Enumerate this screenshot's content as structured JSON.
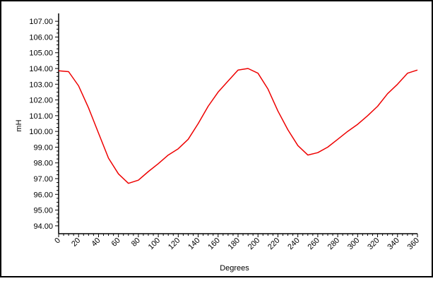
{
  "chart_data": {
    "type": "line",
    "xlabel": "Degrees",
    "ylabel": "mH",
    "xlim": [
      0,
      360
    ],
    "ylim": [
      93.5,
      107.5
    ],
    "x_ticks": [
      0,
      20,
      40,
      60,
      80,
      100,
      120,
      140,
      160,
      180,
      200,
      220,
      240,
      260,
      280,
      300,
      320,
      340,
      360
    ],
    "y_ticks": [
      94,
      95,
      96,
      97,
      98,
      99,
      100,
      101,
      102,
      103,
      104,
      105,
      106,
      107
    ],
    "x_tick_labels": [
      "0",
      "20",
      "40",
      "60",
      "80",
      "100",
      "120",
      "140",
      "160",
      "180",
      "200",
      "220",
      "240",
      "260",
      "280",
      "300",
      "320",
      "340",
      "360"
    ],
    "y_tick_labels": [
      "94.00",
      "95.00",
      "96.00",
      "97.00",
      "98.00",
      "99.00",
      "100.00",
      "101.00",
      "102.00",
      "103.00",
      "104.00",
      "105.00",
      "106.00",
      "107.00"
    ],
    "grid": false,
    "series": [
      {
        "color": "#ee0000",
        "x": [
          0,
          10,
          20,
          30,
          40,
          50,
          60,
          70,
          80,
          90,
          100,
          110,
          120,
          130,
          140,
          150,
          160,
          170,
          180,
          190,
          200,
          210,
          220,
          230,
          240,
          250,
          260,
          270,
          280,
          290,
          300,
          310,
          320,
          330,
          340,
          350,
          360
        ],
        "y": [
          103.85,
          103.8,
          102.9,
          101.5,
          99.9,
          98.3,
          97.3,
          96.7,
          96.9,
          97.45,
          97.95,
          98.5,
          98.9,
          99.5,
          100.5,
          101.6,
          102.5,
          103.2,
          103.9,
          104.0,
          103.7,
          102.7,
          101.3,
          100.1,
          99.1,
          98.5,
          98.65,
          99.0,
          99.5,
          100.0,
          100.45,
          101.0,
          101.6,
          102.4,
          103.0,
          103.7,
          103.9
        ]
      }
    ]
  }
}
